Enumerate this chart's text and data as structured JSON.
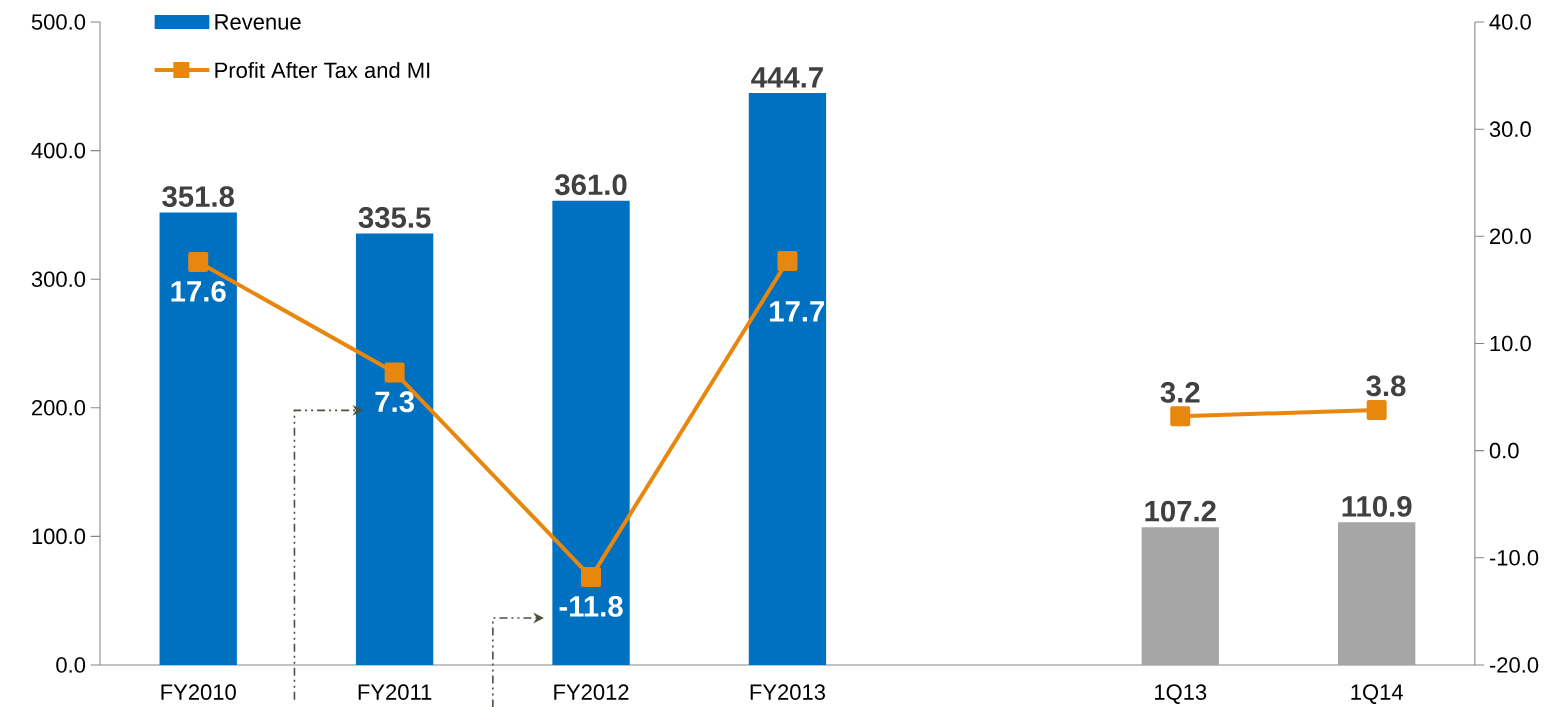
{
  "chart_data": {
    "type": "bar",
    "categories": [
      "FY2010",
      "FY2011",
      "FY2012",
      "FY2013",
      null,
      "1Q13",
      "1Q14"
    ],
    "series": [
      {
        "name": "Revenue",
        "color": "#0070c0",
        "colors": [
          "#0070c0",
          "#0070c0",
          "#0070c0",
          "#0070c0",
          "#0070c0",
          "#a6a6a6",
          "#a6a6a6"
        ],
        "values": [
          351.8,
          335.5,
          361.0,
          444.7,
          null,
          107.2,
          110.9
        ],
        "value_labels": [
          "351.8",
          "335.5",
          "361.0",
          "444.7",
          null,
          "107.2",
          "110.9"
        ]
      },
      {
        "name": "Profit After Tax and MI",
        "type": "line",
        "axis": "y2",
        "color": "#e8870e",
        "marker": "square",
        "line_style": "solid",
        "values": [
          17.6,
          7.3,
          -11.8,
          17.7,
          null,
          3.2,
          3.8
        ],
        "value_labels": [
          "17.6",
          "7.3",
          "-11.8",
          "17.7",
          null,
          "3.2",
          "3.8"
        ]
      }
    ],
    "ylim": [
      0,
      500
    ],
    "yticks": [
      {
        "value": 0,
        "label": "0.0"
      },
      {
        "value": 100,
        "label": "100.0"
      },
      {
        "value": 200,
        "label": "200.0"
      },
      {
        "value": 300,
        "label": "300.0"
      },
      {
        "value": 400,
        "label": "400.0"
      },
      {
        "value": 500,
        "label": "500.0"
      }
    ],
    "y2lim": [
      -20,
      40
    ],
    "y2ticks": [
      {
        "value": -20,
        "label": "-20.0"
      },
      {
        "value": -10,
        "label": "-10.0"
      },
      {
        "value": 0,
        "label": "0.0"
      },
      {
        "value": 10,
        "label": "10.0"
      },
      {
        "value": 20,
        "label": "20.0"
      },
      {
        "value": 30,
        "label": "30.0"
      },
      {
        "value": 40,
        "label": "40.0"
      }
    ],
    "legend": "top left"
  }
}
